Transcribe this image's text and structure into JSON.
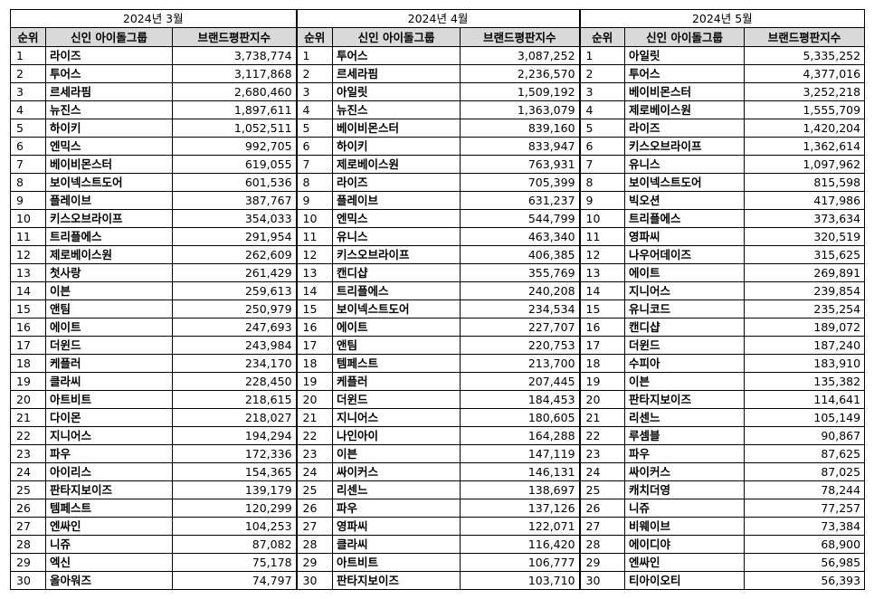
{
  "columns": [
    "순위",
    "신인 아이돌그룹",
    "브랜드평판지수"
  ],
  "tables": [
    {
      "title": "2024년 3월",
      "rows": [
        [
          1,
          "라이즈",
          "3,738,774"
        ],
        [
          2,
          "투어스",
          "3,117,868"
        ],
        [
          3,
          "르세라핌",
          "2,680,460"
        ],
        [
          4,
          "뉴진스",
          "1,897,611"
        ],
        [
          5,
          "하이키",
          "1,052,511"
        ],
        [
          6,
          "엔믹스",
          "992,705"
        ],
        [
          7,
          "베이비몬스터",
          "619,055"
        ],
        [
          8,
          "보이넥스트도어",
          "601,536"
        ],
        [
          9,
          "플레이브",
          "387,767"
        ],
        [
          10,
          "키스오브라이프",
          "354,033"
        ],
        [
          11,
          "트리플에스",
          "291,954"
        ],
        [
          12,
          "제로베이스원",
          "262,609"
        ],
        [
          13,
          "첫사랑",
          "261,429"
        ],
        [
          14,
          "이븐",
          "259,613"
        ],
        [
          15,
          "앤팀",
          "250,979"
        ],
        [
          16,
          "에이트",
          "247,693"
        ],
        [
          17,
          "더윈드",
          "243,984"
        ],
        [
          18,
          "케플러",
          "234,170"
        ],
        [
          19,
          "클라씨",
          "228,450"
        ],
        [
          20,
          "아트비트",
          "218,615"
        ],
        [
          21,
          "다이몬",
          "218,027"
        ],
        [
          22,
          "지니어스",
          "194,294"
        ],
        [
          23,
          "파우",
          "172,336"
        ],
        [
          24,
          "아이리스",
          "154,365"
        ],
        [
          25,
          "판타지보이즈",
          "139,179"
        ],
        [
          26,
          "템페스트",
          "120,299"
        ],
        [
          27,
          "엔싸인",
          "104,253"
        ],
        [
          28,
          "니쥬",
          "87,082"
        ],
        [
          29,
          "엑신",
          "75,178"
        ],
        [
          30,
          "올아워즈",
          "74,797"
        ]
      ]
    },
    {
      "title": "2024년 4월",
      "rows": [
        [
          1,
          "투어스",
          "3,087,252"
        ],
        [
          2,
          "르세라핌",
          "2,236,570"
        ],
        [
          3,
          "아일릿",
          "1,509,192"
        ],
        [
          4,
          "뉴진스",
          "1,363,079"
        ],
        [
          5,
          "베이비몬스터",
          "839,160"
        ],
        [
          6,
          "하이키",
          "833,947"
        ],
        [
          7,
          "제로베이스원",
          "763,931"
        ],
        [
          8,
          "라이즈",
          "705,399"
        ],
        [
          9,
          "플레이브",
          "631,237"
        ],
        [
          10,
          "엔믹스",
          "544,799"
        ],
        [
          11,
          "유니스",
          "463,340"
        ],
        [
          12,
          "키스오브라이프",
          "406,385"
        ],
        [
          13,
          "캔디샵",
          "355,769"
        ],
        [
          14,
          "트리플에스",
          "240,208"
        ],
        [
          15,
          "보이넥스트도어",
          "234,534"
        ],
        [
          16,
          "에이트",
          "227,707"
        ],
        [
          17,
          "앤팀",
          "220,753"
        ],
        [
          18,
          "템페스트",
          "213,700"
        ],
        [
          19,
          "케플러",
          "207,445"
        ],
        [
          20,
          "더윈드",
          "184,453"
        ],
        [
          21,
          "지니어스",
          "180,605"
        ],
        [
          22,
          "나인아이",
          "164,288"
        ],
        [
          23,
          "이븐",
          "147,119"
        ],
        [
          24,
          "싸이커스",
          "146,131"
        ],
        [
          25,
          "리센느",
          "138,697"
        ],
        [
          26,
          "파우",
          "137,126"
        ],
        [
          27,
          "영파씨",
          "122,071"
        ],
        [
          28,
          "클라씨",
          "116,420"
        ],
        [
          29,
          "아트비트",
          "106,777"
        ],
        [
          30,
          "판타지보이즈",
          "103,710"
        ]
      ]
    },
    {
      "title": "2024년 5월",
      "rows": [
        [
          1,
          "아일릿",
          "5,335,252"
        ],
        [
          2,
          "투어스",
          "4,377,016"
        ],
        [
          3,
          "베이비몬스터",
          "3,252,218"
        ],
        [
          4,
          "제로베이스원",
          "1,555,709"
        ],
        [
          5,
          "라이즈",
          "1,420,204"
        ],
        [
          6,
          "키스오브라이프",
          "1,362,614"
        ],
        [
          7,
          "유니스",
          "1,097,962"
        ],
        [
          8,
          "보이넥스트도어",
          "815,598"
        ],
        [
          9,
          "빅오션",
          "417,986"
        ],
        [
          10,
          "트리플에스",
          "373,634"
        ],
        [
          11,
          "영파씨",
          "320,519"
        ],
        [
          12,
          "나우어데이즈",
          "315,625"
        ],
        [
          13,
          "에이트",
          "269,891"
        ],
        [
          14,
          "지니어스",
          "239,854"
        ],
        [
          15,
          "유니코드",
          "235,254"
        ],
        [
          16,
          "캔디샵",
          "189,072"
        ],
        [
          17,
          "더윈드",
          "187,240"
        ],
        [
          18,
          "수피아",
          "183,910"
        ],
        [
          19,
          "이븐",
          "135,382"
        ],
        [
          20,
          "판타지보이즈",
          "114,641"
        ],
        [
          21,
          "리센느",
          "105,149"
        ],
        [
          22,
          "루셈블",
          "90,867"
        ],
        [
          23,
          "파우",
          "87,625"
        ],
        [
          24,
          "싸이커스",
          "87,025"
        ],
        [
          25,
          "캐치더영",
          "78,244"
        ],
        [
          26,
          "니쥬",
          "77,257"
        ],
        [
          27,
          "비웨이브",
          "73,384"
        ],
        [
          28,
          "에이디야",
          "68,900"
        ],
        [
          29,
          "엔싸인",
          "56,985"
        ],
        [
          30,
          "티아이오티",
          "56,393"
        ]
      ]
    }
  ]
}
